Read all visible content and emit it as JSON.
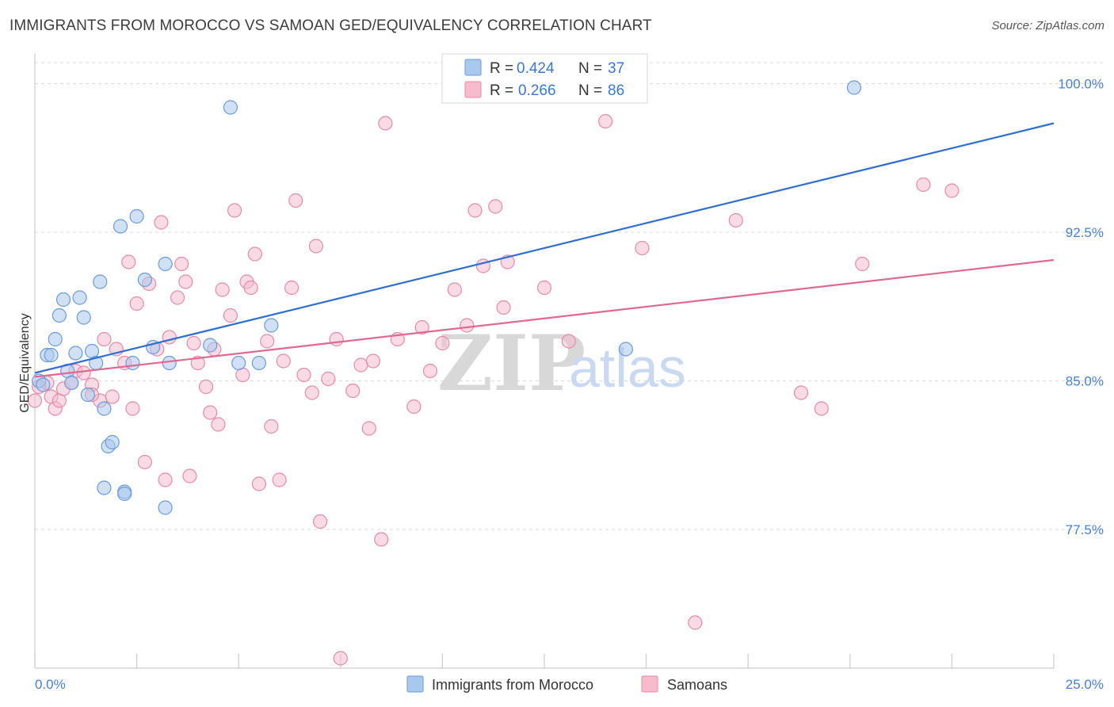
{
  "title": "IMMIGRANTS FROM MOROCCO VS SAMOAN GED/EQUIVALENCY CORRELATION CHART",
  "source": "Source: ZipAtlas.com",
  "watermark": {
    "zip": "ZIP",
    "atlas": "atlas"
  },
  "legend": {
    "r_label": "R =",
    "n_label": "N =",
    "rows": [
      {
        "r": "0.424",
        "n": "37"
      },
      {
        "r": "0.266",
        "n": "86"
      }
    ]
  },
  "colors": {
    "blue_fill": "#a9c8ee",
    "blue_stroke": "#6a9ad8",
    "blue_line": "#2f6fd0",
    "pink_fill": "#f6bccd",
    "pink_stroke": "#e58aa8",
    "pink_line": "#e06894",
    "grid": "#d9d9d9",
    "axis": "#cccccc"
  },
  "chart_data": {
    "type": "scatter",
    "xlabel": "",
    "ylabel": "GED/Equivalency",
    "xlim": [
      0,
      25
    ],
    "ylim": [
      70.5,
      101.5
    ],
    "x_tick_labels": [
      "0.0%",
      "25.0%"
    ],
    "y_ticks": [
      77.5,
      85.0,
      92.5,
      100.0
    ],
    "y_tick_labels": [
      "77.5%",
      "85.0%",
      "92.5%",
      "100.0%"
    ],
    "series": [
      {
        "name": "Immigrants from Morocco",
        "trend": {
          "x": [
            0,
            25
          ],
          "y": [
            85.4,
            98.0
          ]
        },
        "points": [
          [
            0.1,
            85.0
          ],
          [
            0.3,
            86.3
          ],
          [
            0.4,
            86.3
          ],
          [
            0.5,
            87.1
          ],
          [
            0.6,
            88.3
          ],
          [
            0.7,
            89.1
          ],
          [
            0.8,
            85.5
          ],
          [
            0.9,
            84.9
          ],
          [
            1.0,
            86.4
          ],
          [
            1.1,
            89.2
          ],
          [
            1.2,
            88.2
          ],
          [
            1.3,
            84.3
          ],
          [
            1.4,
            86.5
          ],
          [
            1.5,
            85.9
          ],
          [
            1.6,
            90.0
          ],
          [
            1.7,
            83.6
          ],
          [
            1.8,
            81.7
          ],
          [
            1.9,
            81.9
          ],
          [
            2.1,
            92.8
          ],
          [
            2.2,
            79.4
          ],
          [
            2.4,
            85.9
          ],
          [
            2.5,
            93.3
          ],
          [
            2.7,
            90.1
          ],
          [
            2.9,
            86.7
          ],
          [
            3.2,
            90.9
          ],
          [
            3.3,
            85.9
          ],
          [
            1.7,
            79.6
          ],
          [
            2.2,
            79.3
          ],
          [
            3.2,
            78.6
          ],
          [
            4.3,
            86.8
          ],
          [
            4.8,
            98.8
          ],
          [
            5.0,
            85.9
          ],
          [
            5.5,
            85.9
          ],
          [
            5.8,
            87.8
          ],
          [
            14.5,
            86.6
          ],
          [
            20.1,
            99.8
          ],
          [
            0.2,
            84.8
          ]
        ]
      },
      {
        "name": "Samoans",
        "trend": {
          "x": [
            0,
            25
          ],
          "y": [
            85.2,
            91.1
          ]
        },
        "points": [
          [
            0.0,
            84.0
          ],
          [
            0.3,
            84.9
          ],
          [
            0.4,
            84.2
          ],
          [
            0.5,
            83.6
          ],
          [
            0.6,
            84.0
          ],
          [
            0.7,
            84.6
          ],
          [
            0.9,
            84.9
          ],
          [
            1.0,
            85.5
          ],
          [
            1.2,
            85.4
          ],
          [
            1.4,
            84.8
          ],
          [
            1.6,
            84.0
          ],
          [
            1.7,
            87.1
          ],
          [
            1.9,
            84.2
          ],
          [
            2.0,
            86.6
          ],
          [
            2.2,
            85.9
          ],
          [
            2.3,
            91.0
          ],
          [
            2.4,
            83.6
          ],
          [
            2.5,
            88.9
          ],
          [
            2.7,
            80.9
          ],
          [
            2.8,
            89.9
          ],
          [
            3.0,
            86.6
          ],
          [
            3.1,
            93.0
          ],
          [
            3.2,
            80.0
          ],
          [
            3.3,
            87.2
          ],
          [
            3.5,
            89.2
          ],
          [
            3.6,
            90.9
          ],
          [
            3.7,
            90.0
          ],
          [
            3.9,
            86.9
          ],
          [
            4.0,
            85.9
          ],
          [
            4.2,
            84.7
          ],
          [
            4.3,
            83.4
          ],
          [
            4.4,
            86.6
          ],
          [
            4.5,
            82.8
          ],
          [
            4.6,
            89.6
          ],
          [
            4.8,
            88.3
          ],
          [
            4.9,
            93.6
          ],
          [
            5.1,
            85.3
          ],
          [
            5.2,
            90.0
          ],
          [
            5.3,
            89.7
          ],
          [
            5.4,
            91.4
          ],
          [
            5.5,
            79.8
          ],
          [
            5.7,
            87.0
          ],
          [
            5.8,
            82.7
          ],
          [
            6.1,
            86.0
          ],
          [
            6.3,
            89.7
          ],
          [
            6.4,
            94.1
          ],
          [
            6.6,
            85.3
          ],
          [
            6.8,
            84.4
          ],
          [
            6.9,
            91.8
          ],
          [
            7.0,
            77.9
          ],
          [
            7.4,
            87.1
          ],
          [
            7.5,
            71.0
          ],
          [
            7.8,
            84.5
          ],
          [
            8.0,
            85.8
          ],
          [
            8.2,
            82.6
          ],
          [
            8.3,
            86.0
          ],
          [
            8.5,
            77.0
          ],
          [
            8.6,
            98.0
          ],
          [
            8.9,
            87.1
          ],
          [
            9.3,
            83.7
          ],
          [
            9.5,
            87.7
          ],
          [
            9.7,
            85.5
          ],
          [
            10.0,
            86.9
          ],
          [
            10.3,
            89.6
          ],
          [
            10.6,
            87.8
          ],
          [
            10.8,
            93.6
          ],
          [
            11.0,
            90.8
          ],
          [
            11.3,
            93.8
          ],
          [
            11.5,
            88.7
          ],
          [
            11.6,
            91.0
          ],
          [
            12.5,
            89.7
          ],
          [
            13.1,
            87.0
          ],
          [
            14.0,
            98.1
          ],
          [
            14.9,
            91.7
          ],
          [
            16.2,
            72.8
          ],
          [
            17.2,
            93.1
          ],
          [
            18.8,
            84.4
          ],
          [
            19.3,
            83.6
          ],
          [
            20.3,
            90.9
          ],
          [
            21.8,
            94.9
          ],
          [
            22.5,
            94.6
          ],
          [
            0.1,
            84.7
          ],
          [
            1.4,
            84.3
          ],
          [
            3.8,
            80.2
          ],
          [
            6.0,
            80.0
          ],
          [
            7.2,
            85.1
          ]
        ]
      }
    ]
  },
  "bottom_legend": [
    "Immigrants from Morocco",
    "Samoans"
  ]
}
